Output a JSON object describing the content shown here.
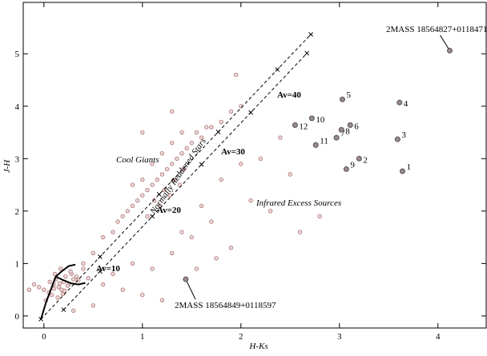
{
  "chart_data": {
    "type": "scatter",
    "x_label": "H-Ks",
    "y_label": "J-H",
    "xlim": [
      -0.21,
      4.49
    ],
    "ylim": [
      -0.23,
      5.98
    ],
    "xticks": [
      0,
      1,
      2,
      3,
      4
    ],
    "yticks": [
      0,
      1,
      2,
      3,
      4,
      5
    ],
    "annotations": [
      "Cool Giants",
      "Normally Reddened Stars",
      "Infrared Excess Sources",
      "Av=10",
      "Av=20",
      "Av=30",
      "Av=40"
    ],
    "background": {
      "color": "#b07878",
      "x": [
        -0.1,
        -0.05,
        0,
        0.05,
        0.1,
        0.12,
        0.15,
        0.18,
        0.2,
        0.22,
        0.25,
        0.28,
        0.3,
        0.08,
        0.14,
        0.17,
        0.21,
        0.24,
        0.1,
        0.16,
        0.19,
        0.27,
        0.33,
        0.35,
        0.4,
        0.45,
        -0.15,
        0.02,
        0.06,
        0.11,
        0.5,
        0.6,
        0.7,
        0.8,
        0.9,
        1.0,
        1.1,
        1.2,
        1.3,
        1.4,
        1.5,
        1.6,
        1.7,
        1.8,
        1.9,
        2.0,
        0.75,
        0.85,
        0.95,
        1.05,
        1.15,
        1.25,
        1.35,
        1.45,
        1.55,
        1.65,
        1.12,
        1.22,
        1.32,
        1.42,
        0.9,
        1.0,
        1.1,
        1.2,
        1.3,
        1.4,
        1.05,
        1.18,
        1.28,
        1.38,
        0.6,
        0.7,
        0.9,
        1.1,
        1.3,
        1.5,
        1.7,
        1.9,
        2.1,
        2.3,
        0.8,
        1.0,
        1.2,
        1.4,
        1.6,
        1.8,
        2.0,
        2.2,
        2.5,
        1.95,
        0.4,
        0.5,
        0.3,
        2.4,
        1.75,
        1.55,
        2.6,
        2.8,
        1.0,
        1.3
      ],
      "y": [
        0.6,
        0.55,
        0.5,
        0.45,
        0.6,
        0.7,
        0.55,
        0.5,
        0.65,
        0.75,
        0.6,
        0.8,
        0.7,
        0.4,
        0.35,
        0.9,
        0.48,
        0.58,
        0.52,
        0.62,
        0.42,
        0.85,
        0.75,
        0.68,
        0.9,
        0.72,
        0.5,
        0.3,
        0.65,
        0.8,
        1.2,
        1.5,
        1.6,
        1.9,
        2.1,
        2.3,
        2.5,
        2.7,
        2.9,
        3.1,
        3.3,
        3.4,
        3.6,
        3.7,
        3.9,
        4.0,
        1.8,
        2.0,
        2.2,
        2.4,
        2.6,
        2.8,
        3.0,
        3.2,
        3.5,
        3.6,
        2.2,
        2.4,
        2.6,
        2.8,
        2.5,
        2.6,
        2.9,
        3.1,
        3.3,
        3.5,
        1.9,
        2.1,
        2.3,
        2.5,
        0.6,
        0.8,
        1.0,
        0.9,
        1.2,
        1.5,
        1.8,
        1.3,
        2.2,
        2.0,
        0.5,
        0.4,
        0.3,
        1.6,
        2.1,
        2.6,
        2.9,
        3.0,
        2.7,
        4.6,
        1.0,
        0.2,
        0.1,
        3.4,
        1.1,
        0.9,
        1.6,
        1.9,
        3.5,
        3.9
      ]
    },
    "sources": {
      "color": "#555555",
      "labels": [
        "1",
        "2",
        "3",
        "4",
        "5",
        "6",
        "7",
        "8",
        "9",
        "10",
        "11",
        "12",
        "2MASS 18564827+0118471",
        "2MASS 18564849+0118597"
      ],
      "x": [
        3.64,
        3.2,
        3.59,
        3.61,
        3.03,
        3.11,
        2.97,
        3.02,
        3.07,
        2.72,
        2.76,
        2.55,
        4.12,
        1.44
      ],
      "y": [
        2.76,
        3.0,
        3.37,
        4.07,
        4.13,
        3.64,
        3.4,
        3.55,
        2.8,
        3.77,
        3.26,
        3.64,
        5.06,
        0.7
      ]
    },
    "reddening_lines": [
      {
        "x": [
          -0.03,
          0.57,
          1.17,
          1.77,
          2.37,
          2.71
        ],
        "y": [
          -0.06,
          1.13,
          2.32,
          3.51,
          4.7,
          5.37
        ]
      },
      {
        "x": [
          0.2,
          0.57,
          1.1,
          1.6,
          2.1,
          2.67
        ],
        "y": [
          0.12,
          0.85,
          1.9,
          2.89,
          3.88,
          5.01
        ]
      }
    ],
    "loci": [
      {
        "x": [
          -0.03,
          0.02,
          0.08,
          0.12,
          0.18,
          0.25,
          0.32
        ],
        "y": [
          -0.06,
          0.25,
          0.55,
          0.75,
          0.85,
          0.95,
          0.98
        ]
      },
      {
        "x": [
          0.12,
          0.2,
          0.28,
          0.35,
          0.42
        ],
        "y": [
          0.75,
          0.68,
          0.62,
          0.6,
          0.63
        ]
      }
    ]
  }
}
